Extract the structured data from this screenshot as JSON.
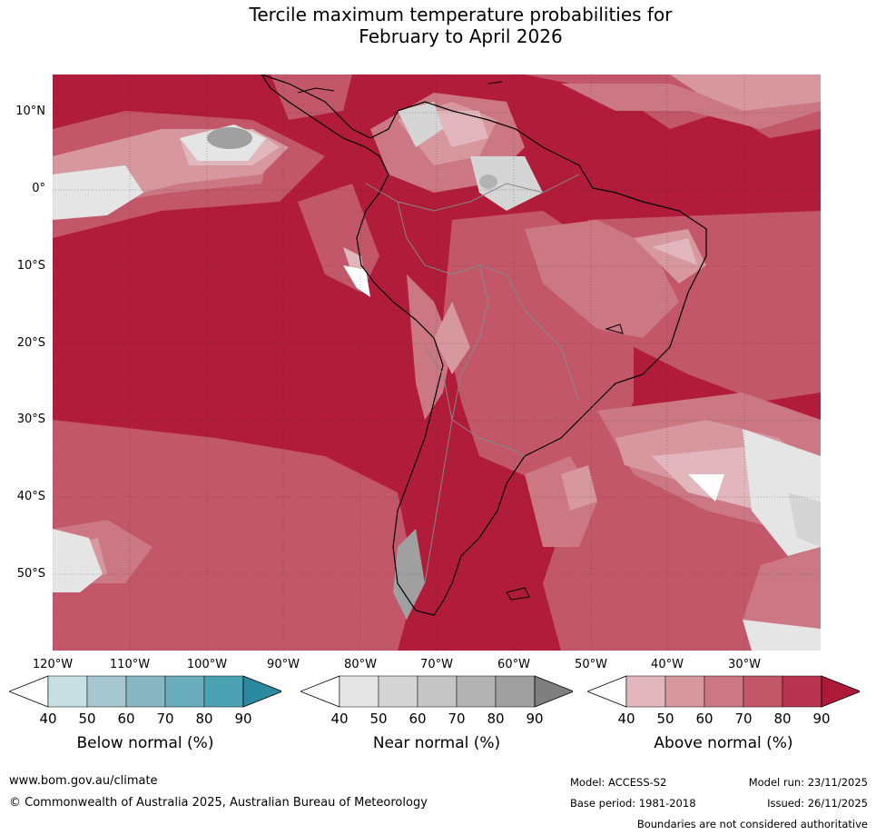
{
  "title_line1": "Tercile maximum temperature probabilities for",
  "title_line2": "February to April 2026",
  "lat_labels": [
    "10°N",
    "0°",
    "10°S",
    "20°S",
    "30°S",
    "40°S",
    "50°S"
  ],
  "lon_labels": [
    "120°W",
    "110°W",
    "100°W",
    "90°W",
    "80°W",
    "70°W",
    "60°W",
    "50°W",
    "40°W",
    "30°W"
  ],
  "colorbars": [
    {
      "title": "Below normal (%)",
      "ticks": [
        "40",
        "50",
        "60",
        "70",
        "80",
        "90"
      ],
      "colors": [
        "#ffffff",
        "#c8dfe4",
        "#a6c7cf",
        "#88b7c3",
        "#6aaebd",
        "#4aa2b3",
        "#2b8a9f"
      ]
    },
    {
      "title": "Near normal (%)",
      "ticks": [
        "40",
        "50",
        "60",
        "70",
        "80",
        "90"
      ],
      "colors": [
        "#ffffff",
        "#e5e5e5",
        "#d5d5d5",
        "#c5c5c5",
        "#b2b2b2",
        "#a0a0a0",
        "#7f7f7f"
      ]
    },
    {
      "title": "Above normal (%)",
      "ticks": [
        "40",
        "50",
        "60",
        "70",
        "80",
        "90"
      ],
      "colors": [
        "#ffffff",
        "#e1b7bd",
        "#d6979f",
        "#cb7784",
        "#c2576a",
        "#b93450",
        "#af1a38"
      ]
    }
  ],
  "footer": {
    "website": "www.bom.gov.au/climate",
    "copyright": "© Commonwealth of Australia 2025, Australian Bureau of Meteorology",
    "model": "Model: ACCESS-S2",
    "base_period": "Base period: 1981-2018",
    "model_run": "Model run: 23/11/2025",
    "issued": "Issued: 26/11/2025",
    "disclaimer": "Boundaries are not considered authoritative"
  }
}
